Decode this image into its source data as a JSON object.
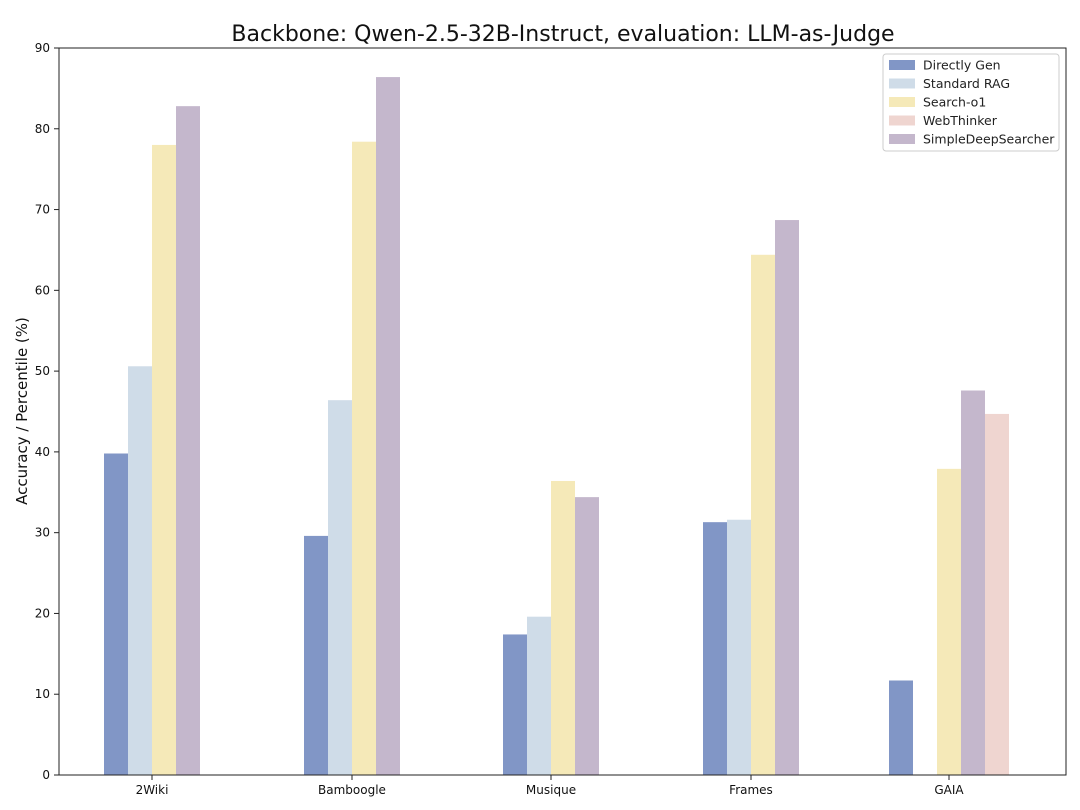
{
  "chart_data": {
    "type": "bar",
    "title": "Backbone: Qwen-2.5-32B-Instruct, evaluation: LLM-as-Judge",
    "xlabel": "",
    "ylabel": "Accuracy / Percentile (%)",
    "ylim": [
      0,
      90
    ],
    "yticks": [
      0,
      10,
      20,
      30,
      40,
      50,
      60,
      70,
      80,
      90
    ],
    "grid": false,
    "legend_position": "top-right",
    "categories": [
      "2Wiki",
      "Bamboogle",
      "Musique",
      "Frames",
      "GAIA"
    ],
    "series": [
      {
        "name": "Directly Gen",
        "color": "#8196c6",
        "values": [
          39.8,
          29.6,
          17.4,
          31.3,
          11.7
        ]
      },
      {
        "name": "Standard RAG",
        "color": "#cfdce8",
        "values": [
          50.6,
          46.4,
          19.6,
          31.6,
          null
        ]
      },
      {
        "name": "Search-o1",
        "color": "#f5e9b8",
        "values": [
          78.0,
          78.4,
          36.4,
          64.4,
          37.9
        ]
      },
      {
        "name": "WebThinker",
        "color": "#efd5d0",
        "values": [
          null,
          null,
          null,
          null,
          44.7
        ]
      },
      {
        "name": "SimpleDeepSearcher",
        "color": "#c4b7cc",
        "values": [
          82.8,
          86.4,
          34.4,
          68.7,
          47.6
        ]
      }
    ],
    "bar_order": [
      [
        "Directly Gen",
        "Standard RAG",
        "Search-o1",
        "SimpleDeepSearcher"
      ],
      [
        "Directly Gen",
        "Standard RAG",
        "Search-o1",
        "SimpleDeepSearcher"
      ],
      [
        "Directly Gen",
        "Standard RAG",
        "Search-o1",
        "SimpleDeepSearcher"
      ],
      [
        "Directly Gen",
        "Standard RAG",
        "Search-o1",
        "SimpleDeepSearcher"
      ],
      [
        "Directly Gen",
        "Standard RAG",
        "Search-o1",
        "SimpleDeepSearcher",
        "WebThinker"
      ]
    ]
  }
}
